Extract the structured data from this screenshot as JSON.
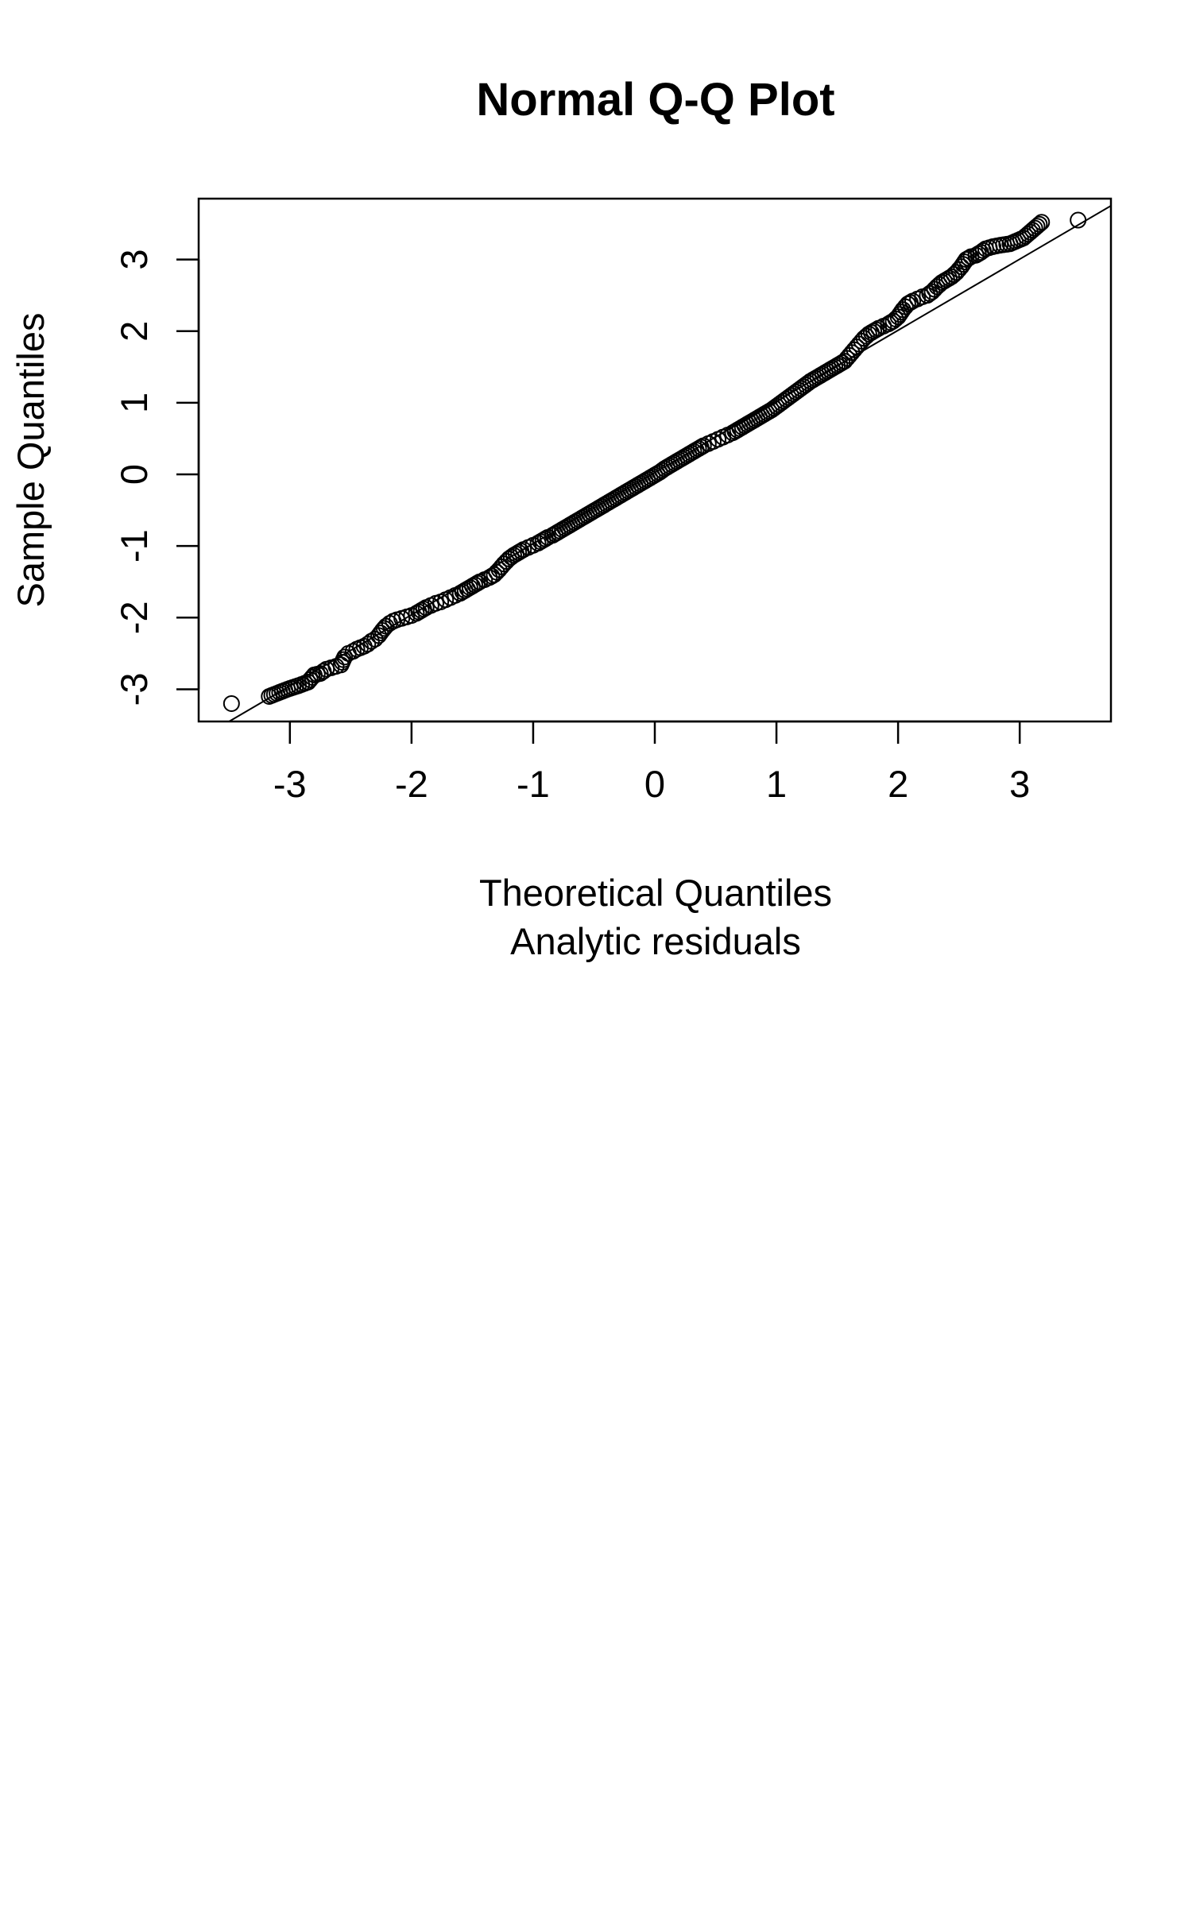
{
  "chart_data": {
    "type": "scatter",
    "title": "Normal Q-Q Plot",
    "xlabel": "Theoretical Quantiles",
    "xsublabel": "Analytic residuals",
    "ylabel": "Sample Quantiles",
    "xlim": [
      -3.75,
      3.75
    ],
    "ylim": [
      -3.45,
      3.85
    ],
    "xticks": [
      -3,
      -2,
      -1,
      0,
      1,
      2,
      3
    ],
    "yticks": [
      -3,
      -2,
      -1,
      0,
      1,
      2,
      3
    ],
    "xtick_labels": [
      "-3",
      "-2",
      "-1",
      "0",
      "1",
      "2",
      "3"
    ],
    "ytick_labels": [
      "-3",
      "-2",
      "-1",
      "0",
      "1",
      "2",
      "3"
    ],
    "grid": false,
    "marker": "open-circle",
    "point_color": "#000000",
    "reference_line": {
      "from": [
        -3.5,
        -3.45
      ],
      "to": [
        3.75,
        3.75
      ]
    },
    "points": [
      [
        -3.48,
        -3.2
      ],
      [
        -3.17,
        -3.1
      ],
      [
        -3.02,
        -3.0
      ],
      [
        -2.93,
        -2.95
      ],
      [
        -2.85,
        -2.9
      ],
      [
        -2.8,
        -2.8
      ],
      [
        -2.75,
        -2.78
      ],
      [
        -2.7,
        -2.72
      ],
      [
        -2.66,
        -2.7
      ],
      [
        -2.62,
        -2.68
      ],
      [
        -2.58,
        -2.66
      ],
      [
        -2.55,
        -2.55
      ],
      [
        -2.52,
        -2.5
      ],
      [
        -2.48,
        -2.47
      ],
      [
        -2.45,
        -2.44
      ],
      [
        -2.42,
        -2.42
      ],
      [
        -2.39,
        -2.4
      ],
      [
        -2.36,
        -2.37
      ],
      [
        -2.33,
        -2.33
      ],
      [
        -2.3,
        -2.3
      ],
      [
        -2.27,
        -2.25
      ],
      [
        -2.24,
        -2.18
      ],
      [
        -2.21,
        -2.12
      ],
      [
        -2.18,
        -2.08
      ],
      [
        -2.15,
        -2.05
      ],
      [
        -2.12,
        -2.03
      ],
      [
        -2.08,
        -2.01
      ],
      [
        -2.04,
        -1.99
      ],
      [
        -2.0,
        -1.97
      ],
      [
        -1.96,
        -1.94
      ],
      [
        -1.92,
        -1.9
      ],
      [
        -1.88,
        -1.86
      ],
      [
        -1.84,
        -1.83
      ],
      [
        -1.8,
        -1.8
      ],
      [
        -1.76,
        -1.78
      ],
      [
        -1.72,
        -1.75
      ],
      [
        -1.68,
        -1.72
      ],
      [
        -1.64,
        -1.69
      ],
      [
        -1.6,
        -1.66
      ],
      [
        -1.56,
        -1.62
      ],
      [
        -1.52,
        -1.58
      ],
      [
        -1.48,
        -1.54
      ],
      [
        -1.44,
        -1.5
      ],
      [
        -1.4,
        -1.47
      ],
      [
        -1.36,
        -1.44
      ],
      [
        -1.32,
        -1.4
      ],
      [
        -1.28,
        -1.33
      ],
      [
        -1.24,
        -1.25
      ],
      [
        -1.2,
        -1.18
      ],
      [
        -1.16,
        -1.13
      ],
      [
        -1.12,
        -1.09
      ],
      [
        -1.08,
        -1.05
      ],
      [
        -1.04,
        -1.02
      ],
      [
        -1.0,
        -0.99
      ],
      [
        -0.96,
        -0.96
      ],
      [
        -0.92,
        -0.92
      ],
      [
        -0.88,
        -0.88
      ],
      [
        -0.84,
        -0.85
      ],
      [
        -0.8,
        -0.81
      ],
      [
        -0.76,
        -0.77
      ],
      [
        -0.72,
        -0.73
      ],
      [
        -0.68,
        -0.69
      ],
      [
        -0.64,
        -0.65
      ],
      [
        -0.6,
        -0.61
      ],
      [
        -0.56,
        -0.57
      ],
      [
        -0.52,
        -0.53
      ],
      [
        -0.48,
        -0.49
      ],
      [
        -0.44,
        -0.45
      ],
      [
        -0.4,
        -0.41
      ],
      [
        -0.36,
        -0.37
      ],
      [
        -0.32,
        -0.33
      ],
      [
        -0.28,
        -0.29
      ],
      [
        -0.24,
        -0.25
      ],
      [
        -0.2,
        -0.21
      ],
      [
        -0.16,
        -0.17
      ],
      [
        -0.12,
        -0.13
      ],
      [
        -0.08,
        -0.09
      ],
      [
        -0.04,
        -0.05
      ],
      [
        0.0,
        -0.01
      ],
      [
        0.04,
        0.03
      ],
      [
        0.08,
        0.08
      ],
      [
        0.12,
        0.12
      ],
      [
        0.16,
        0.16
      ],
      [
        0.2,
        0.2
      ],
      [
        0.24,
        0.24
      ],
      [
        0.28,
        0.28
      ],
      [
        0.32,
        0.32
      ],
      [
        0.36,
        0.36
      ],
      [
        0.4,
        0.4
      ],
      [
        0.44,
        0.43
      ],
      [
        0.48,
        0.46
      ],
      [
        0.52,
        0.49
      ],
      [
        0.56,
        0.52
      ],
      [
        0.6,
        0.55
      ],
      [
        0.64,
        0.58
      ],
      [
        0.68,
        0.62
      ],
      [
        0.72,
        0.66
      ],
      [
        0.76,
        0.7
      ],
      [
        0.8,
        0.74
      ],
      [
        0.84,
        0.78
      ],
      [
        0.88,
        0.82
      ],
      [
        0.92,
        0.86
      ],
      [
        0.96,
        0.9
      ],
      [
        1.0,
        0.95
      ],
      [
        1.04,
        1.0
      ],
      [
        1.08,
        1.05
      ],
      [
        1.12,
        1.1
      ],
      [
        1.16,
        1.15
      ],
      [
        1.2,
        1.2
      ],
      [
        1.24,
        1.25
      ],
      [
        1.28,
        1.3
      ],
      [
        1.32,
        1.34
      ],
      [
        1.36,
        1.38
      ],
      [
        1.4,
        1.42
      ],
      [
        1.44,
        1.46
      ],
      [
        1.48,
        1.5
      ],
      [
        1.52,
        1.54
      ],
      [
        1.56,
        1.58
      ],
      [
        1.6,
        1.66
      ],
      [
        1.64,
        1.74
      ],
      [
        1.68,
        1.82
      ],
      [
        1.72,
        1.9
      ],
      [
        1.76,
        1.96
      ],
      [
        1.8,
        2.0
      ],
      [
        1.84,
        2.04
      ],
      [
        1.88,
        2.07
      ],
      [
        1.92,
        2.1
      ],
      [
        1.96,
        2.14
      ],
      [
        2.0,
        2.2
      ],
      [
        2.04,
        2.3
      ],
      [
        2.08,
        2.38
      ],
      [
        2.12,
        2.42
      ],
      [
        2.16,
        2.45
      ],
      [
        2.2,
        2.48
      ],
      [
        2.24,
        2.5
      ],
      [
        2.28,
        2.55
      ],
      [
        2.32,
        2.62
      ],
      [
        2.36,
        2.68
      ],
      [
        2.4,
        2.72
      ],
      [
        2.44,
        2.76
      ],
      [
        2.48,
        2.82
      ],
      [
        2.52,
        2.9
      ],
      [
        2.56,
        3.0
      ],
      [
        2.6,
        3.04
      ],
      [
        2.64,
        3.06
      ],
      [
        2.68,
        3.1
      ],
      [
        2.72,
        3.15
      ],
      [
        2.78,
        3.18
      ],
      [
        2.84,
        3.2
      ],
      [
        2.92,
        3.22
      ],
      [
        3.03,
        3.3
      ],
      [
        3.18,
        3.52
      ],
      [
        3.48,
        3.55
      ]
    ]
  }
}
